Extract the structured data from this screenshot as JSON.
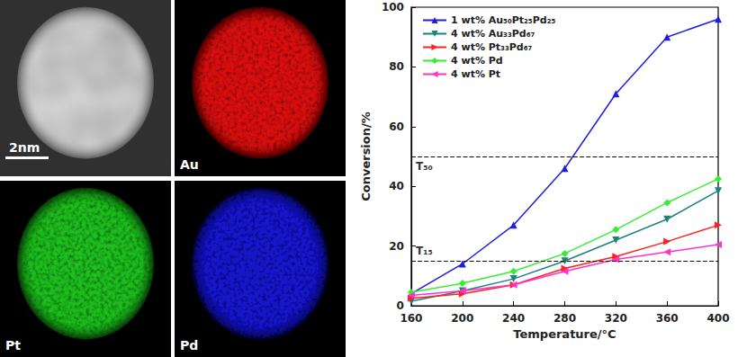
{
  "chart_data": {
    "type": "line",
    "x_label": "Temperature/°C",
    "y_label": "Conversion/%",
    "x": [
      160,
      200,
      240,
      280,
      320,
      360,
      400
    ],
    "xlim": [
      160,
      400
    ],
    "xticks": [
      160,
      200,
      240,
      280,
      320,
      360,
      400
    ],
    "ylim": [
      0,
      100
    ],
    "yticks": [
      0,
      20,
      40,
      60,
      80,
      100
    ],
    "grid": false,
    "legend": "upper left",
    "series": [
      {
        "name": "1 wt% Au₅₀Pt₂₅Pd₂₅",
        "color": "#1f1fe0",
        "marker": "triangle-up",
        "values": [
          4,
          14,
          27,
          46,
          71,
          90,
          96
        ]
      },
      {
        "name": "4 wt% Au₃₃Pd₆₇",
        "color": "#1b8080",
        "marker": "triangle-down",
        "values": [
          1.5,
          5,
          9,
          15,
          22,
          29,
          38.5
        ]
      },
      {
        "name": "4 wt% Pt₃₃Pd₆₇",
        "color": "#ff2020",
        "marker": "triangle-right",
        "values": [
          2.5,
          4,
          7,
          12.5,
          16.5,
          21.5,
          27
        ]
      },
      {
        "name": "4 wt% Pd",
        "color": "#33ee33",
        "marker": "diamond",
        "values": [
          4.5,
          7.5,
          11.5,
          17.5,
          25.5,
          34.5,
          42.5
        ]
      },
      {
        "name": "4 wt% Pt",
        "color": "#ff33cc",
        "marker": "triangle-left",
        "values": [
          3.5,
          5,
          7,
          11.5,
          15.5,
          18,
          20.5
        ]
      }
    ],
    "annotations": [
      {
        "y": 50,
        "label": "T₅₀",
        "line_style": "dashed"
      },
      {
        "y": 15,
        "label": "T₁₅",
        "line_style": "dashed"
      }
    ]
  },
  "image_panels": [
    {
      "label": "",
      "color": "#d8d8d8",
      "scale_bar": "2nm"
    },
    {
      "label": "Au",
      "color": "#e01010"
    },
    {
      "label": "Pt",
      "color": "#20c020"
    },
    {
      "label": "Pd",
      "color": "#1818d0"
    }
  ]
}
